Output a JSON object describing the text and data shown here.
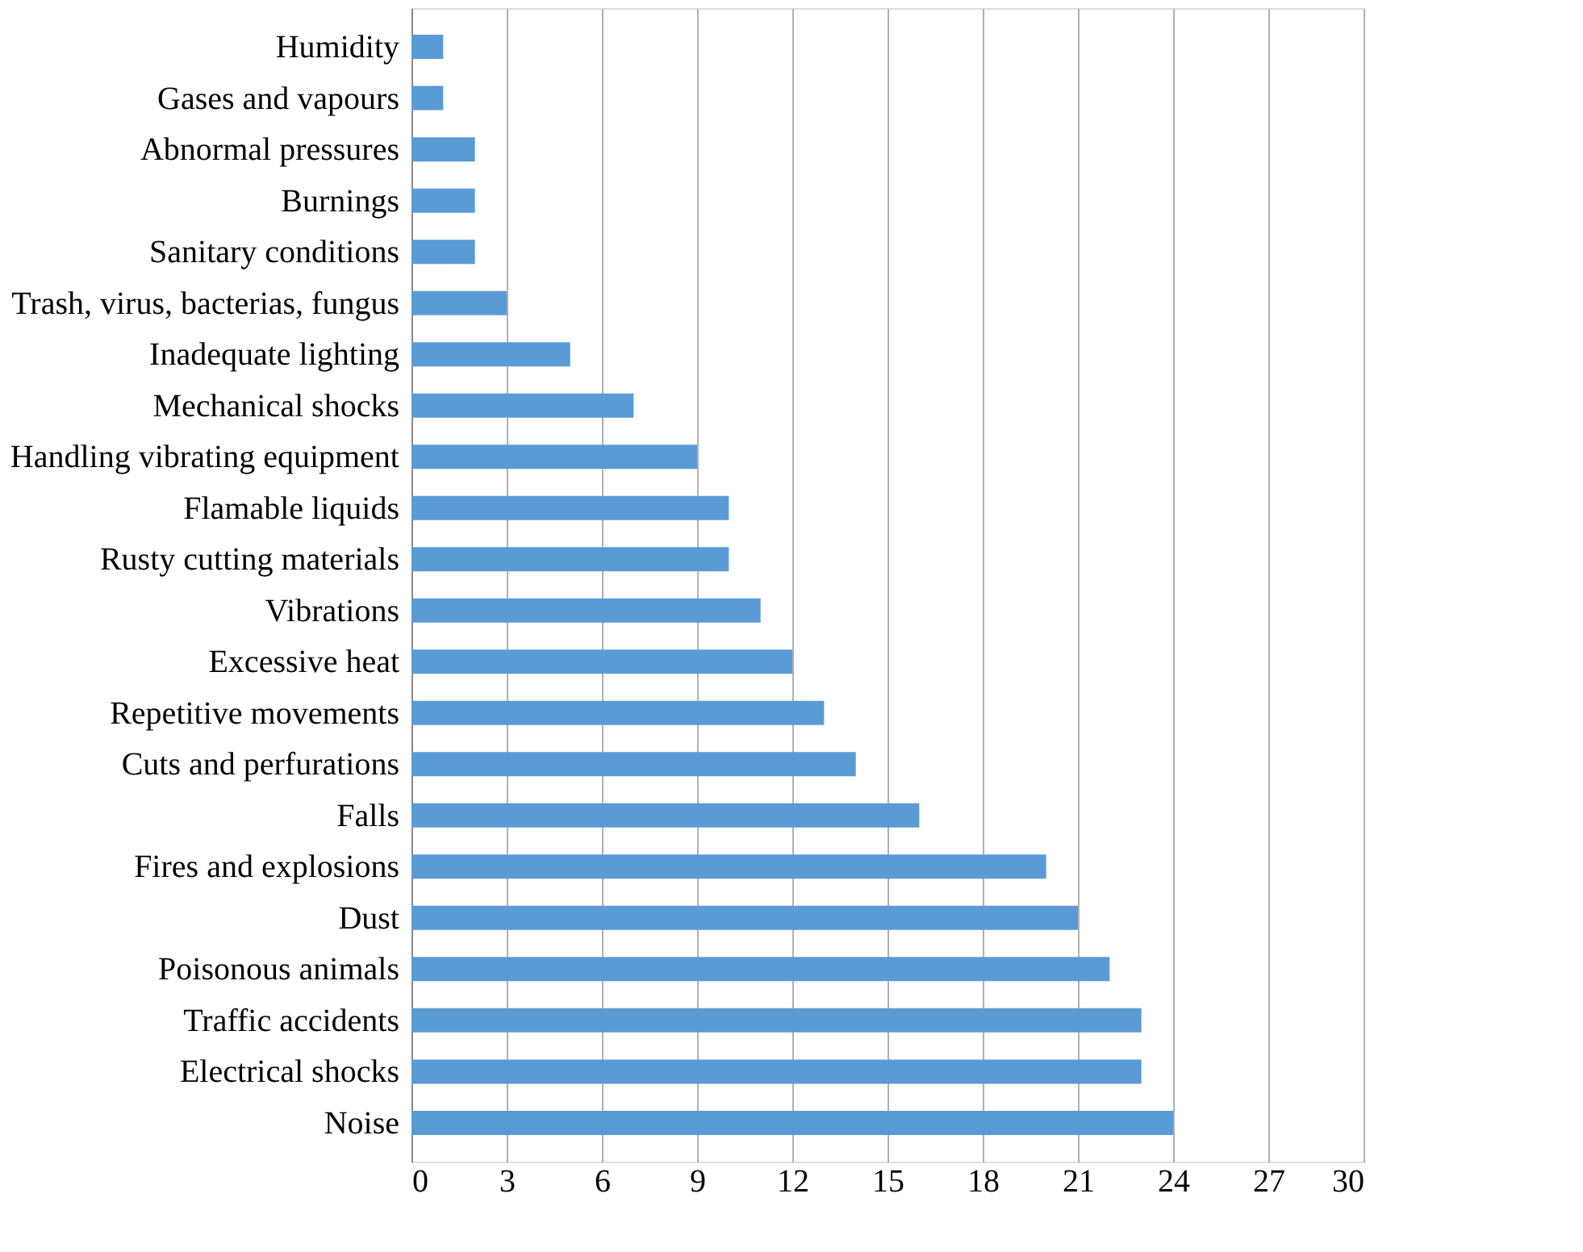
{
  "chart_data": {
    "type": "bar",
    "orientation": "horizontal",
    "categories": [
      "Humidity",
      "Gases and vapours",
      "Abnormal pressures",
      "Burnings",
      "Sanitary conditions",
      "Trash, virus, bacterias, fungus",
      "Inadequate lighting",
      "Mechanical shocks",
      "Handling vibrating equipment",
      "Flamable liquids",
      "Rusty cutting materials",
      "Vibrations",
      "Excessive heat",
      "Repetitive movements",
      "Cuts and perfurations",
      "Falls",
      "Fires and explosions",
      "Dust",
      "Poisonous animals",
      "Traffic accidents",
      "Electrical shocks",
      "Noise"
    ],
    "values": [
      1,
      1,
      2,
      2,
      2,
      3,
      5,
      7,
      9,
      10,
      10,
      11,
      12,
      13,
      14,
      16,
      20,
      21,
      22,
      23,
      23,
      24
    ],
    "color": "#5b9bd5",
    "xlim": [
      0,
      30
    ],
    "xticks": [
      0,
      3,
      6,
      9,
      12,
      15,
      18,
      21,
      24,
      27,
      30
    ],
    "grid": "x",
    "legend": false
  }
}
